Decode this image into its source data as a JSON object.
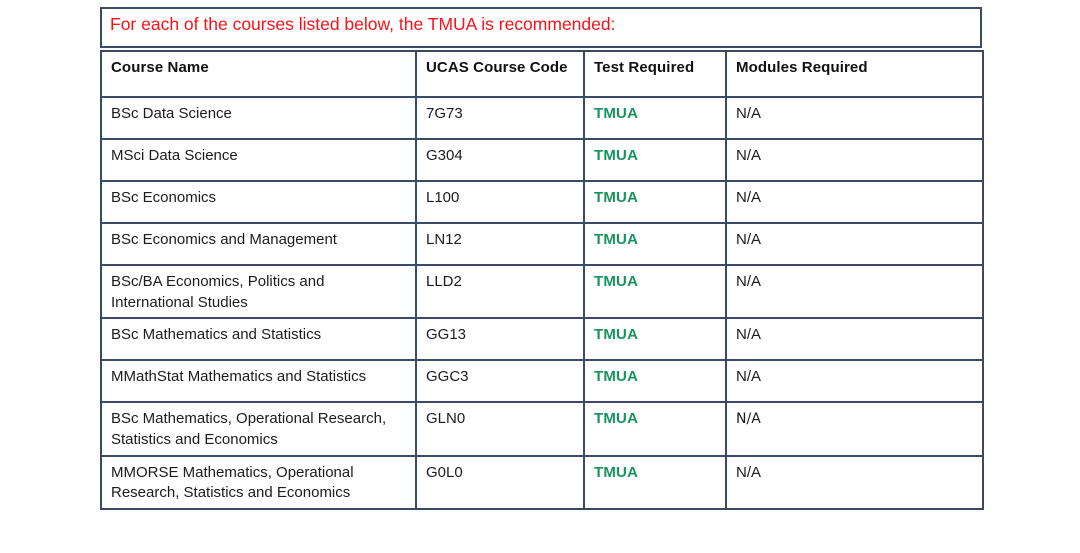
{
  "caption": {
    "text": "For each of the courses listed below, the TMUA is recommended:"
  },
  "colors": {
    "caption_red": "#fb1217",
    "border_navy": "#394a66",
    "tmua_green": "#17935e",
    "text_black": "#1c1c1c"
  },
  "table": {
    "headers": [
      "Course Name",
      "UCAS Course Code",
      "Test Required",
      "Modules Required"
    ],
    "rows": [
      {
        "course": "BSc Data Science",
        "code": "7G73",
        "test": "TMUA",
        "modules": "N/A"
      },
      {
        "course": "MSci Data Science",
        "code": "G304",
        "test": "TMUA",
        "modules": "N/A"
      },
      {
        "course": "BSc Economics",
        "code": "L100",
        "test": "TMUA",
        "modules": "N/A"
      },
      {
        "course": "BSc Economics and Management",
        "code": "LN12",
        "test": "TMUA",
        "modules": "N/A"
      },
      {
        "course": "BSc/BA Economics, Politics and International Studies",
        "code": "LLD2",
        "test": "TMUA",
        "modules": "N/A"
      },
      {
        "course": "BSc Mathematics and Statistics",
        "code": "GG13",
        "test": "TMUA",
        "modules": "N/A"
      },
      {
        "course": "MMathStat Mathematics and Statistics",
        "code": "GGC3",
        "test": "TMUA",
        "modules": "N/A"
      },
      {
        "course": "BSc Mathematics, Operational Research, Statistics and Economics",
        "code": "GLN0",
        "test": "TMUA",
        "modules": "N/A",
        "modules_alt": true
      },
      {
        "course": "MMORSE Mathematics, Operational Research, Statistics and Economics",
        "code": "G0L0",
        "test": "TMUA",
        "modules": "N/A"
      }
    ]
  }
}
